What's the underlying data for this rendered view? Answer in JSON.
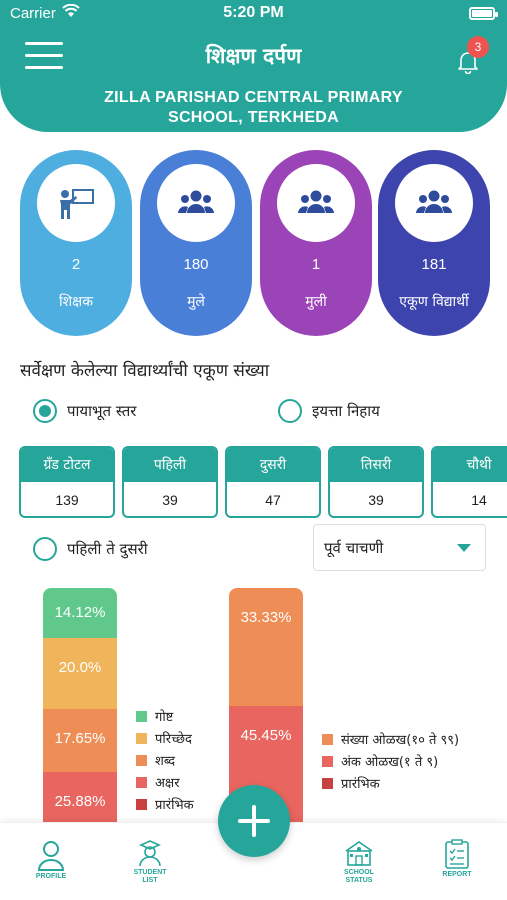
{
  "status_bar": {
    "carrier": "Carrier",
    "time": "5:20 PM"
  },
  "header": {
    "app_title": "शिक्षण दर्पण",
    "notification_count": "3",
    "school_name_line1": "ZILLA PARISHAD CENTRAL PRIMARY",
    "school_name_line2": "SCHOOL, TERKHEDA"
  },
  "summary_cards": [
    {
      "count": "2",
      "label": "शिक्षक",
      "icon": "teacher-icon",
      "color": "#4faee0"
    },
    {
      "count": "180",
      "label": "मुले",
      "icon": "group-icon",
      "color": "#4a7fd8"
    },
    {
      "count": "1",
      "label": "मुली",
      "icon": "group-icon",
      "color": "#9b44b8"
    },
    {
      "count": "181",
      "label": "एकूण विद्यार्थी",
      "icon": "group-icon",
      "color": "#3d44ad"
    }
  ],
  "survey": {
    "title": "सर्वेक्षण केलेल्या विद्यार्थ्यांची एकूण संख्या",
    "radio_foundation": "पायाभूत स्तर",
    "radio_grade": "इयत्ता निहाय",
    "selected": "पायाभूत स्तर"
  },
  "stats": [
    {
      "label": "ग्रँड टोटल",
      "value": "139"
    },
    {
      "label": "पहिली",
      "value": "39"
    },
    {
      "label": "दुसरी",
      "value": "47"
    },
    {
      "label": "तिसरी",
      "value": "39"
    },
    {
      "label": "चौथी",
      "value": "14"
    }
  ],
  "filter": {
    "radio_label": "पहिली ते दुसरी",
    "dropdown_value": "पूर्व चाचणी"
  },
  "chart_data": [
    {
      "type": "bar",
      "stacked": true,
      "series": [
        {
          "name": "गोष्ट",
          "value": 14.12,
          "label": "14.12%",
          "color": "#5fc88a"
        },
        {
          "name": "परिच्छेद",
          "value": 20.0,
          "label": "20.0%",
          "color": "#f0b45a"
        },
        {
          "name": "शब्द",
          "value": 17.65,
          "label": "17.65%",
          "color": "#ee8d55"
        },
        {
          "name": "अक्षर",
          "value": 25.88,
          "label": "25.88%",
          "color": "#e8665f"
        },
        {
          "name": "प्रारंभिक",
          "value": null,
          "label": "",
          "color": "#c94040"
        }
      ]
    },
    {
      "type": "bar",
      "stacked": true,
      "series": [
        {
          "name": "संख्या ओळख(१० ते ९९)",
          "value": 33.33,
          "label": "33.33%",
          "color": "#ee8d55"
        },
        {
          "name": "अंक ओळख(१ ते ९)",
          "value": 45.45,
          "label": "45.45%",
          "color": "#e8665f"
        },
        {
          "name": "प्रारंभिक",
          "value": null,
          "label": "",
          "color": "#c94040"
        }
      ]
    }
  ],
  "bottom_nav": {
    "profile": "PROFILE",
    "student_list_1": "STUDENT",
    "student_list_2": "LIST",
    "school_status_1": "SCHOOL",
    "school_status_2": "STATUS",
    "report": "REPORT"
  }
}
